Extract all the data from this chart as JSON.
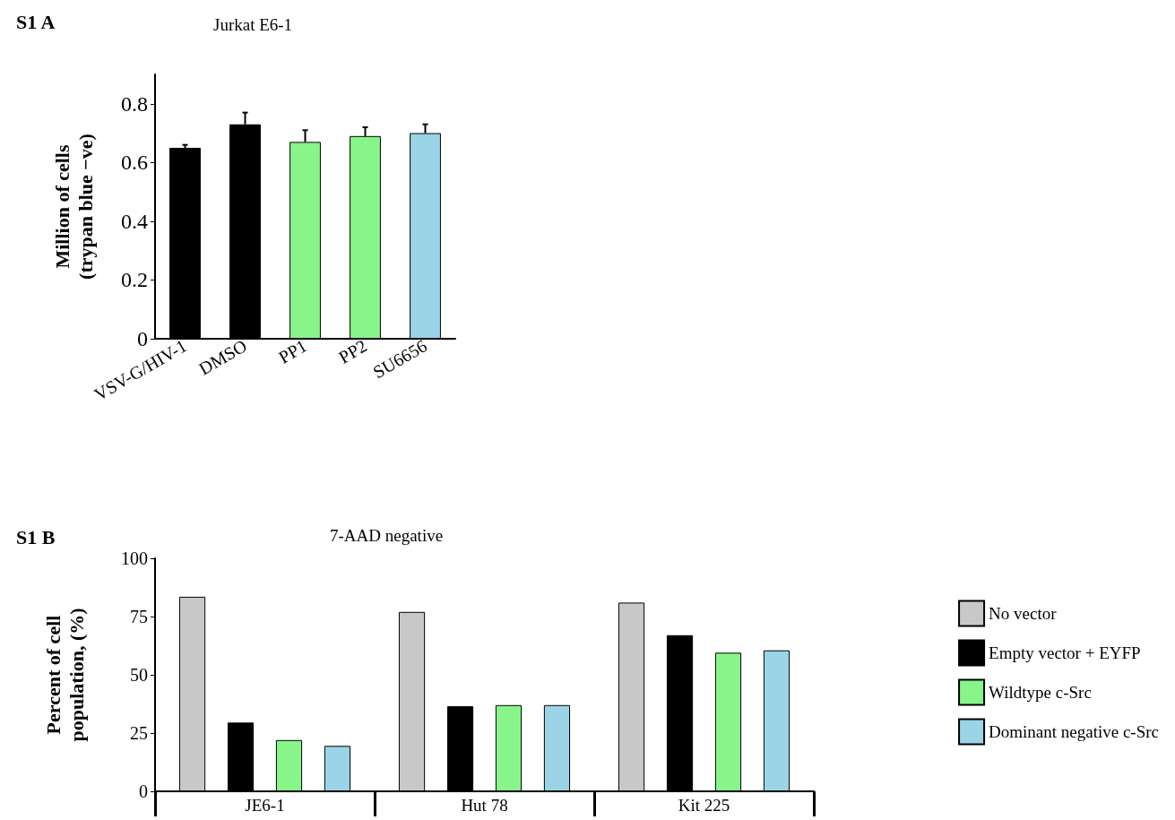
{
  "chart_data": [
    {
      "type": "bar",
      "title": "Jurkat E6-1",
      "ylabel": "Million of cells\n(trypan blue −ve)",
      "annotations": [
        "S1 A"
      ],
      "categories": [
        "VSV-G/HIV-1",
        "DMSO",
        "PP1",
        "PP2",
        "SU6656"
      ],
      "values": [
        0.65,
        0.73,
        0.67,
        0.69,
        0.7
      ],
      "colors": [
        "#000000",
        "#000000",
        "#88f58a",
        "#88f58a",
        "#9ad4e6"
      ],
      "errors": [
        [
          0.65,
          0.66
        ],
        [
          0.73,
          0.77
        ],
        [
          0.67,
          0.71
        ],
        [
          0.69,
          0.72
        ],
        [
          0.7,
          0.73
        ]
      ],
      "ylim": [
        0,
        0.9
      ],
      "yticks": [
        0,
        0.2,
        0.4,
        0.6,
        0.8
      ],
      "grid": false,
      "legend": false
    },
    {
      "type": "bar",
      "title": "7-AAD negative",
      "ylabel": "Percent of cell\npopulation, (%)",
      "annotations": [
        "S1 B"
      ],
      "categories": [
        "JE6-1",
        "Hut 78",
        "Kit 225"
      ],
      "series": [
        {
          "name": "No vector",
          "color": "#c8c8c8",
          "values": [
            83.5,
            77,
            81
          ]
        },
        {
          "name": "Empty vector + EYFP",
          "color": "#000000",
          "values": [
            29.5,
            36.5,
            67
          ]
        },
        {
          "name": "Wildtype c-Src",
          "color": "#88f58a",
          "values": [
            22,
            37,
            59.5
          ]
        },
        {
          "name": "Dominant negative c-Src",
          "color": "#9ad4e6",
          "values": [
            19.5,
            37,
            60.5
          ]
        }
      ],
      "ylim": [
        0,
        100
      ],
      "yticks": [
        0,
        25,
        50,
        75,
        100
      ],
      "grid": false,
      "legend": "right"
    }
  ]
}
